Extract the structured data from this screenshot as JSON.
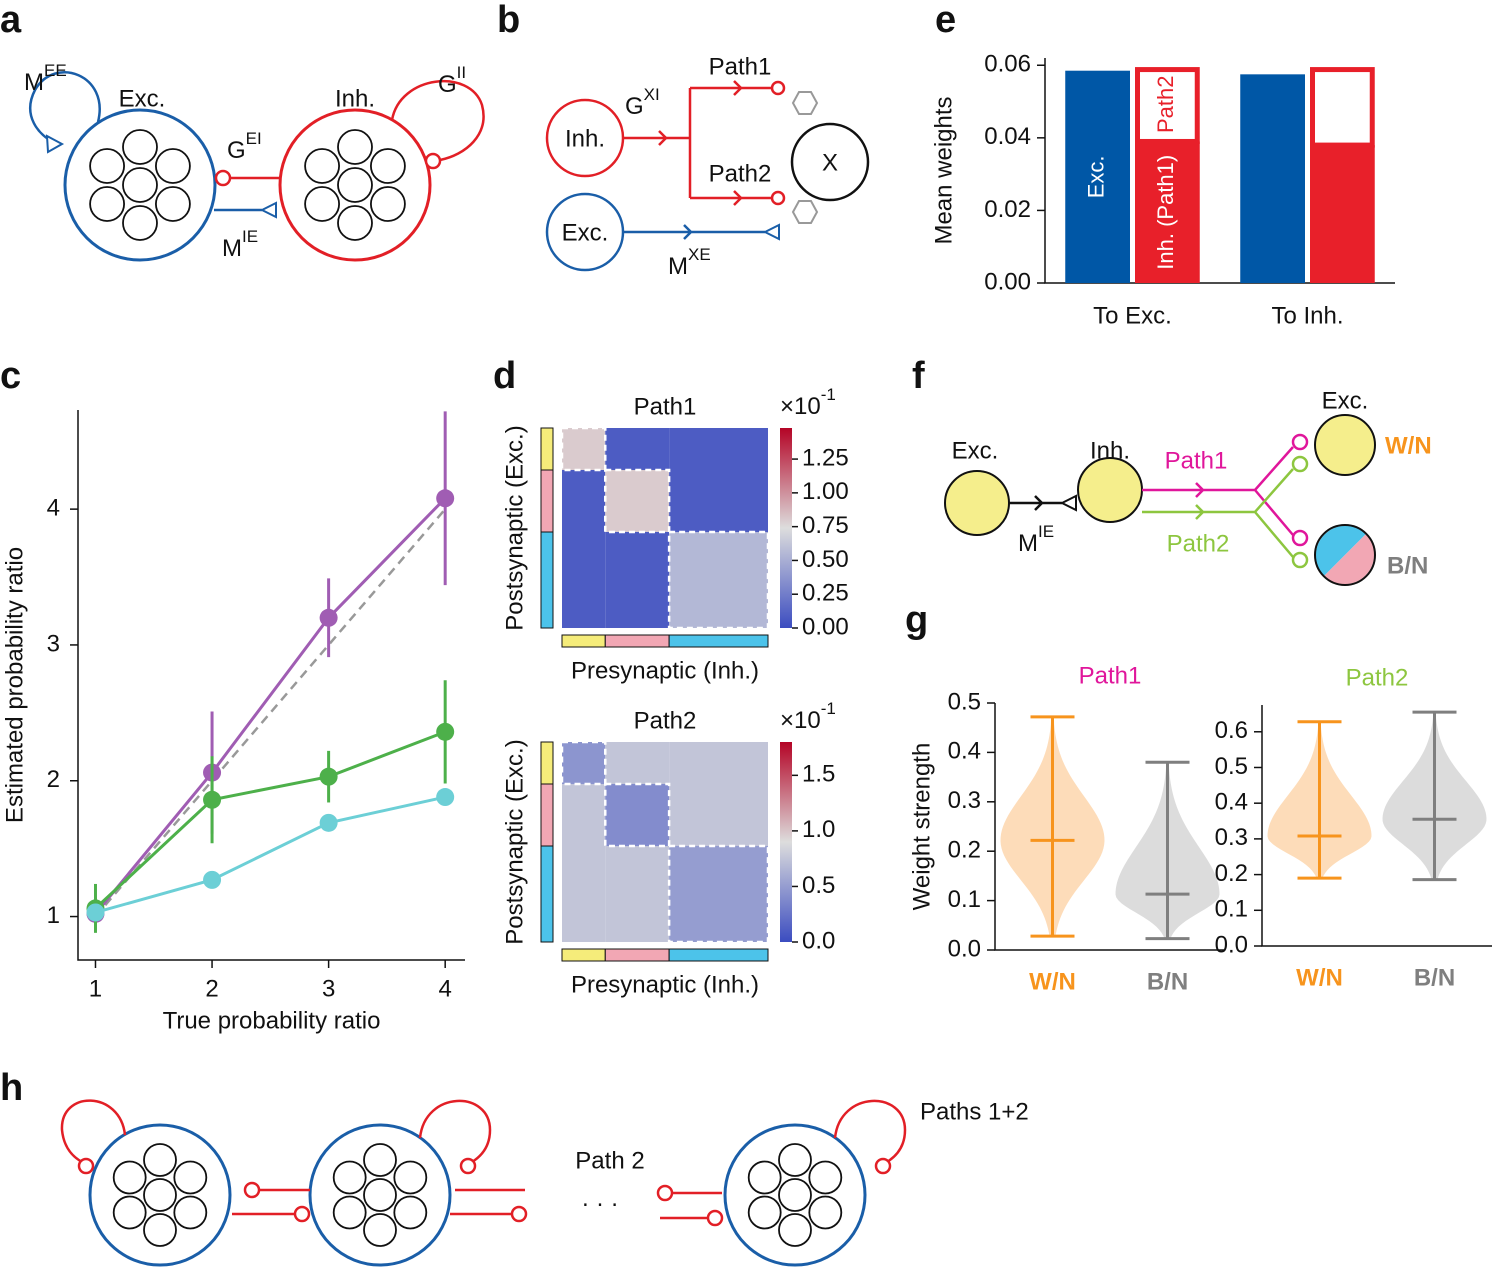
{
  "panel_labels": [
    "a",
    "b",
    "c",
    "d",
    "e",
    "f",
    "g",
    "h"
  ],
  "diagram_a": {
    "exc": "Exc.",
    "inh": "Inh.",
    "mee": {
      "base": "M",
      "sup": "EE"
    },
    "gii": {
      "base": "G",
      "sup": "II"
    },
    "gei": {
      "base": "G",
      "sup": "EI"
    },
    "mie": {
      "base": "M",
      "sup": "IE"
    }
  },
  "diagram_b": {
    "inh": "Inh.",
    "exc": "Exc.",
    "gxi": {
      "base": "G",
      "sup": "XI"
    },
    "mxe": {
      "base": "M",
      "sup": "XE"
    },
    "path1": "Path1",
    "path2": "Path2",
    "target": "X"
  },
  "diagram_f": {
    "exc_pre": "Exc.",
    "inh": "Inh.",
    "mie": {
      "base": "M",
      "sup": "IE"
    },
    "path1": "Path1",
    "path2": "Path2",
    "exc_post": "Exc.",
    "wn": "W/N",
    "bn": "B/N"
  },
  "diagram_h": {
    "path2": "Path 2",
    "ellipsis": "· · ·",
    "paths12": "Paths 1+2"
  },
  "chart_data": [
    {
      "type": "line",
      "xlabel": "True probability ratio",
      "ylabel": "Estimated probability ratio",
      "x": [
        1,
        2,
        3,
        4
      ],
      "xlim": [
        0.85,
        4.17
      ],
      "ylim": [
        0.68,
        4.73
      ],
      "xticks": [
        1,
        2,
        3,
        4
      ],
      "yticks": [
        1,
        2,
        3,
        4
      ],
      "reference_line": {
        "x": [
          1,
          4
        ],
        "values": [
          1,
          4
        ],
        "color": "#999999",
        "dashed": true
      },
      "series": [
        {
          "color": "#a05db3",
          "values": [
            1.02,
            2.06,
            3.2,
            4.08
          ],
          "errors": [
            0.12,
            0.45,
            0.29,
            0.64
          ]
        },
        {
          "color": "#4db04a",
          "values": [
            1.06,
            1.86,
            2.03,
            2.36
          ],
          "errors": [
            0.18,
            0.32,
            0.19,
            0.38
          ]
        },
        {
          "color": "#6ccfd6",
          "values": [
            1.03,
            1.27,
            1.69,
            1.88
          ]
        }
      ]
    },
    {
      "type": "bar",
      "ylabel": "Mean weights",
      "categories": [
        "To Exc.",
        "To Inh."
      ],
      "ylim": [
        0,
        0.062
      ],
      "yticks": [
        {
          "value": 0,
          "label": "0.00"
        },
        0.02,
        0.04,
        0.06
      ],
      "series": [
        {
          "name": "Exc.",
          "color": "#0057a6",
          "values": [
            0.0585,
            0.0575
          ],
          "stack": "exc"
        },
        {
          "name": "Inh. (Path1)",
          "color": "#e8202a",
          "values": [
            0.039,
            0.038
          ],
          "stack": "inh"
        },
        {
          "name": "Path2",
          "color": "#ffffff",
          "edge": "#e8202a",
          "values": [
            0.0205,
            0.0215
          ],
          "stack": "inh"
        }
      ]
    },
    {
      "type": "heatmap",
      "title": "Path1",
      "xlabel": "Presynaptic (Inh.)",
      "ylabel": "Postsynaptic (Exc.)",
      "groups": {
        "colors": [
          "#f5ec7a",
          "#f2a7b4",
          "#4cc3ea"
        ],
        "sizes": [
          0.21,
          0.31,
          0.48
        ]
      },
      "values": [
        [
          0.8,
          0.08,
          0.08
        ],
        [
          0.08,
          0.8,
          0.08
        ],
        [
          0.08,
          0.08,
          0.55
        ]
      ],
      "clim": [
        0,
        1.48
      ],
      "colormap": [
        "#3b4cc0",
        "#dddddd",
        "#b40426"
      ],
      "cticks": [
        {
          "value": 0,
          "label": "0.00"
        },
        0.25,
        {
          "value": 0.5,
          "label": "0.50"
        },
        0.75,
        {
          "value": 1,
          "label": "1.00"
        },
        1.25
      ],
      "colorbar_scale": {
        "base": "×10",
        "exp": "-1"
      }
    },
    {
      "type": "heatmap",
      "title": "Path2",
      "xlabel": "Presynaptic (Inh.)",
      "ylabel": "Postsynaptic (Exc.)",
      "groups": {
        "colors": [
          "#f5ec7a",
          "#f2a7b4",
          "#4cc3ea"
        ],
        "sizes": [
          0.21,
          0.31,
          0.48
        ]
      },
      "values": [
        [
          0.45,
          0.75,
          0.75
        ],
        [
          0.75,
          0.4,
          0.75
        ],
        [
          0.75,
          0.75,
          0.5
        ]
      ],
      "clim": [
        0,
        1.8
      ],
      "colormap": [
        "#3b4cc0",
        "#dddddd",
        "#b40426"
      ],
      "cticks": [
        {
          "value": 0,
          "label": "0.0"
        },
        0.5,
        {
          "value": 1,
          "label": "1.0"
        },
        1.5
      ],
      "colorbar_scale": {
        "base": "×10",
        "exp": "-1"
      }
    },
    {
      "type": "violin",
      "title": "Path1",
      "title_color": "#e0169b",
      "ylabel": "Weight strength",
      "categories": [
        "W/N",
        "B/N"
      ],
      "category_colors": [
        "#f7941d",
        "#7f7f7f"
      ],
      "fill_colors": [
        "#fdd6ad",
        "#d6d6d6"
      ],
      "ylim": [
        0,
        0.5
      ],
      "yticks": [
        {
          "value": 0,
          "label": "0.0"
        },
        0.1,
        0.2,
        0.3,
        0.4,
        0.5
      ],
      "median": [
        0.222,
        0.113
      ],
      "min": [
        0.028,
        0.023
      ],
      "max": [
        0.472,
        0.38
      ]
    },
    {
      "type": "violin",
      "title": "Path2",
      "title_color": "#8dc63f",
      "categories": [
        "W/N",
        "B/N"
      ],
      "category_colors": [
        "#f7941d",
        "#7f7f7f"
      ],
      "fill_colors": [
        "#fdd6ad",
        "#d6d6d6"
      ],
      "ylim": [
        0,
        0.675
      ],
      "yticks": [
        {
          "value": 0,
          "label": "0.0"
        },
        0.1,
        0.2,
        0.3,
        0.4,
        0.5,
        0.6
      ],
      "median": [
        0.308,
        0.355
      ],
      "min": [
        0.19,
        0.186
      ],
      "max": [
        0.628,
        0.655
      ]
    }
  ]
}
